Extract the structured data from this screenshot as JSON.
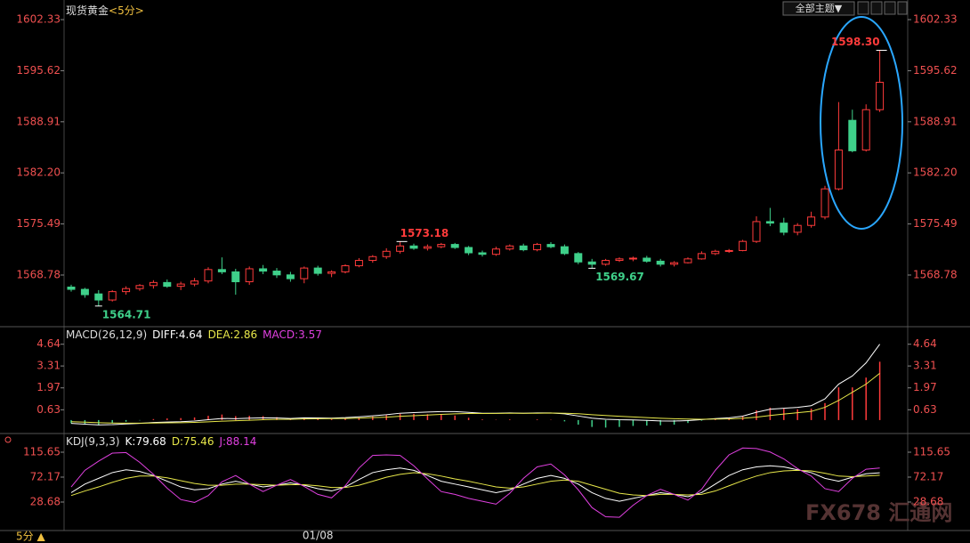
{
  "ui": {
    "theme_button": "全部主题▼",
    "period": "5分 ▲",
    "watermark": "FX678 汇通网"
  },
  "chart_data": [
    {
      "type": "candlestick",
      "title": "现货黄金",
      "subtitle": "<5分>",
      "ylim": [
        1562.23,
        1603.97
      ],
      "yticks": [
        1602.33,
        1595.62,
        1588.91,
        {
          "value": 1582.2,
          "label": "1582.20"
        },
        1575.49,
        1568.78
      ],
      "up_color": "#ff3b3b",
      "down_color": "#3fd08a",
      "categories": [
        null,
        null,
        null,
        null,
        null,
        null,
        null,
        null,
        null,
        null,
        null,
        null,
        null,
        null,
        null,
        null,
        null,
        null,
        "01/08",
        null,
        null,
        null,
        null,
        null,
        null,
        null,
        null,
        null,
        null,
        null,
        null,
        null,
        null,
        null,
        null,
        null,
        null,
        null,
        null,
        null,
        null,
        null,
        null,
        null,
        null,
        null,
        null,
        null,
        null,
        null,
        null,
        null,
        null,
        null,
        null,
        null,
        null,
        null,
        null,
        null
      ],
      "ohlc": [
        [
          1567.2,
          1567.5,
          1566.6,
          1566.9
        ],
        [
          1566.9,
          1567.1,
          1565.8,
          1566.2
        ],
        [
          1566.3,
          1566.8,
          1564.71,
          1565.5
        ],
        [
          1565.5,
          1566.8,
          1565.3,
          1566.6
        ],
        [
          1566.6,
          1567.3,
          1566.2,
          1567.0
        ],
        [
          1567.0,
          1567.6,
          1566.7,
          1567.4
        ],
        [
          1567.4,
          1568.1,
          1567.0,
          1567.8
        ],
        [
          1567.8,
          1568.2,
          1567.1,
          1567.3
        ],
        [
          1567.3,
          1567.9,
          1566.8,
          1567.6
        ],
        [
          1567.6,
          1568.4,
          1567.3,
          1568.0
        ],
        [
          1568.0,
          1569.8,
          1567.7,
          1569.5
        ],
        [
          1569.5,
          1571.1,
          1568.9,
          1569.2
        ],
        [
          1569.2,
          1569.6,
          1566.2,
          1567.9
        ],
        [
          1567.9,
          1569.9,
          1567.5,
          1569.6
        ],
        [
          1569.6,
          1570.1,
          1568.9,
          1569.3
        ],
        [
          1569.3,
          1569.7,
          1568.4,
          1568.8
        ],
        [
          1568.8,
          1569.2,
          1567.9,
          1568.3
        ],
        [
          1568.3,
          1569.9,
          1567.7,
          1569.7
        ],
        [
          1569.7,
          1570.0,
          1568.7,
          1569.0
        ],
        [
          1569.0,
          1569.4,
          1568.5,
          1569.2
        ],
        [
          1569.2,
          1570.2,
          1569.0,
          1570.0
        ],
        [
          1570.0,
          1571.0,
          1569.8,
          1570.7
        ],
        [
          1570.7,
          1571.4,
          1570.4,
          1571.2
        ],
        [
          1571.2,
          1572.3,
          1570.9,
          1571.9
        ],
        [
          1571.9,
          1573.18,
          1571.6,
          1572.6
        ],
        [
          1572.6,
          1572.9,
          1572.1,
          1572.3
        ],
        [
          1572.3,
          1572.8,
          1572.0,
          1572.5
        ],
        [
          1572.5,
          1573.0,
          1572.3,
          1572.8
        ],
        [
          1572.8,
          1573.0,
          1572.2,
          1572.4
        ],
        [
          1572.4,
          1572.6,
          1571.4,
          1571.7
        ],
        [
          1571.7,
          1572.0,
          1571.2,
          1571.5
        ],
        [
          1571.5,
          1572.5,
          1571.3,
          1572.2
        ],
        [
          1572.2,
          1572.8,
          1572.0,
          1572.6
        ],
        [
          1572.6,
          1572.9,
          1571.9,
          1572.1
        ],
        [
          1572.1,
          1573.0,
          1571.9,
          1572.8
        ],
        [
          1572.8,
          1573.1,
          1572.3,
          1572.5
        ],
        [
          1572.5,
          1572.8,
          1571.4,
          1571.6
        ],
        [
          1571.6,
          1571.8,
          1570.2,
          1570.5
        ],
        [
          1570.5,
          1570.9,
          1569.67,
          1570.2
        ],
        [
          1570.2,
          1570.9,
          1570.0,
          1570.7
        ],
        [
          1570.7,
          1571.1,
          1570.5,
          1570.9
        ],
        [
          1570.9,
          1571.2,
          1570.6,
          1571.0
        ],
        [
          1571.0,
          1571.3,
          1570.4,
          1570.6
        ],
        [
          1570.6,
          1570.9,
          1569.9,
          1570.2
        ],
        [
          1570.2,
          1570.6,
          1569.9,
          1570.4
        ],
        [
          1570.4,
          1571.1,
          1570.3,
          1570.9
        ],
        [
          1570.9,
          1571.9,
          1570.8,
          1571.6
        ],
        [
          1571.6,
          1572.1,
          1571.4,
          1571.9
        ],
        [
          1571.9,
          1572.2,
          1571.7,
          1572.0
        ],
        [
          1572.0,
          1573.4,
          1571.9,
          1573.2
        ],
        [
          1573.2,
          1576.5,
          1573.0,
          1575.8
        ],
        [
          1575.8,
          1577.6,
          1575.2,
          1575.6
        ],
        [
          1575.6,
          1576.3,
          1574.0,
          1574.4
        ],
        [
          1574.4,
          1575.6,
          1574.0,
          1575.3
        ],
        [
          1575.3,
          1577.1,
          1575.0,
          1576.4
        ],
        [
          1576.4,
          1580.5,
          1576.1,
          1580.1
        ],
        [
          1580.1,
          1591.5,
          1579.9,
          1585.2
        ],
        [
          1589.1,
          1590.5,
          1584.9,
          1585.1
        ],
        [
          1585.2,
          1591.2,
          1585.0,
          1590.5
        ],
        [
          1590.5,
          1598.3,
          1590.2,
          1594.1
        ]
      ],
      "annotations": [
        {
          "label": "1598.30"
        },
        {
          "label": "1573.18"
        },
        {
          "label": "1564.71"
        },
        {
          "label": "1569.67"
        }
      ]
    },
    {
      "type": "macd",
      "title": "MACD(26,12,9)",
      "ylim": [
        -0.55,
        5.55
      ],
      "yticks": [
        4.64,
        3.31,
        1.97,
        0.63
      ],
      "series": [
        {
          "label": "DIFF:4.64",
          "color": "#ffffff",
          "kind": "line",
          "values": [
            -0.2,
            -0.25,
            -0.3,
            -0.28,
            -0.24,
            -0.2,
            -0.15,
            -0.12,
            -0.1,
            -0.06,
            0.02,
            0.1,
            0.08,
            0.12,
            0.14,
            0.13,
            0.1,
            0.14,
            0.13,
            0.12,
            0.15,
            0.2,
            0.26,
            0.33,
            0.42,
            0.46,
            0.49,
            0.52,
            0.52,
            0.47,
            0.42,
            0.42,
            0.44,
            0.42,
            0.44,
            0.44,
            0.38,
            0.25,
            0.12,
            0.05,
            0.02,
            0.01,
            -0.02,
            -0.05,
            -0.06,
            -0.03,
            0.03,
            0.09,
            0.14,
            0.24,
            0.48,
            0.66,
            0.72,
            0.78,
            0.88,
            1.3,
            2.2,
            2.7,
            3.5,
            4.64
          ]
        },
        {
          "label": "DEA:2.86",
          "color": "#e8e84a",
          "kind": "line",
          "values": [
            -0.1,
            -0.13,
            -0.16,
            -0.18,
            -0.19,
            -0.19,
            -0.18,
            -0.17,
            -0.16,
            -0.14,
            -0.11,
            -0.07,
            -0.04,
            -0.01,
            0.02,
            0.04,
            0.05,
            0.07,
            0.08,
            0.09,
            0.1,
            0.12,
            0.15,
            0.18,
            0.23,
            0.27,
            0.31,
            0.35,
            0.38,
            0.4,
            0.4,
            0.41,
            0.42,
            0.42,
            0.42,
            0.43,
            0.42,
            0.39,
            0.33,
            0.28,
            0.23,
            0.19,
            0.15,
            0.11,
            0.08,
            0.06,
            0.05,
            0.06,
            0.07,
            0.11,
            0.18,
            0.28,
            0.37,
            0.45,
            0.53,
            0.78,
            1.2,
            1.7,
            2.2,
            2.86
          ]
        },
        {
          "label": "MACD:3.57",
          "color": "#e040e0",
          "up_color": "#ff3b3b",
          "down_color": "#3fd08a",
          "kind": "histogram",
          "values": [
            -0.2,
            -0.24,
            -0.28,
            -0.2,
            -0.1,
            -0.02,
            0.06,
            0.1,
            0.12,
            0.16,
            0.26,
            0.34,
            0.24,
            0.26,
            0.24,
            0.18,
            0.1,
            0.14,
            0.1,
            0.06,
            0.1,
            0.16,
            0.22,
            0.3,
            0.38,
            0.38,
            0.36,
            0.34,
            0.28,
            0.14,
            0.04,
            0.02,
            0.04,
            0.0,
            0.04,
            0.02,
            -0.08,
            -0.28,
            -0.42,
            -0.46,
            -0.42,
            -0.36,
            -0.34,
            -0.32,
            -0.28,
            -0.18,
            -0.04,
            0.06,
            0.14,
            0.26,
            0.6,
            0.76,
            0.7,
            0.66,
            0.7,
            1.04,
            2.0,
            2.0,
            2.6,
            3.57
          ]
        }
      ]
    },
    {
      "type": "line",
      "title": "KDJ(9,3,3)",
      "ylim": [
        -19.5,
        143.6
      ],
      "yticks": [
        115.65,
        72.17,
        28.68
      ],
      "series": [
        {
          "label": "K:79.68",
          "color": "#ffffff",
          "values": [
            45,
            60,
            70,
            80,
            85,
            82,
            75,
            65,
            55,
            50,
            52,
            60,
            65,
            60,
            55,
            58,
            62,
            58,
            52,
            48,
            55,
            68,
            80,
            85,
            88,
            84,
            75,
            65,
            60,
            55,
            50,
            45,
            50,
            60,
            70,
            75,
            70,
            60,
            45,
            35,
            30,
            35,
            40,
            45,
            42,
            38,
            45,
            60,
            75,
            85,
            90,
            92,
            90,
            85,
            80,
            70,
            65,
            72,
            78,
            79.68
          ]
        },
        {
          "label": "D:75.46",
          "color": "#e8e84a",
          "values": [
            40,
            48,
            55,
            63,
            70,
            74,
            74,
            71,
            66,
            61,
            58,
            58,
            60,
            60,
            59,
            58,
            59,
            59,
            57,
            54,
            54,
            58,
            65,
            72,
            77,
            80,
            78,
            74,
            69,
            65,
            60,
            55,
            53,
            55,
            60,
            65,
            67,
            65,
            58,
            51,
            44,
            41,
            40,
            42,
            42,
            41,
            42,
            48,
            57,
            66,
            74,
            80,
            83,
            84,
            83,
            79,
            74,
            73,
            74,
            75.46
          ]
        },
        {
          "label": "J:88.14",
          "color": "#e040e0",
          "values": [
            55,
            84,
            100,
            114,
            115,
            98,
            77,
            53,
            33,
            28,
            40,
            64,
            75,
            60,
            47,
            58,
            68,
            56,
            42,
            36,
            57,
            88,
            110,
            111,
            110,
            92,
            69,
            47,
            42,
            35,
            30,
            25,
            44,
            70,
            90,
            95,
            76,
            50,
            19,
            3,
            2,
            23,
            40,
            51,
            42,
            32,
            51,
            84,
            111,
            123,
            122,
            116,
            104,
            87,
            74,
            52,
            47,
            70,
            86,
            88.14
          ]
        }
      ]
    }
  ]
}
